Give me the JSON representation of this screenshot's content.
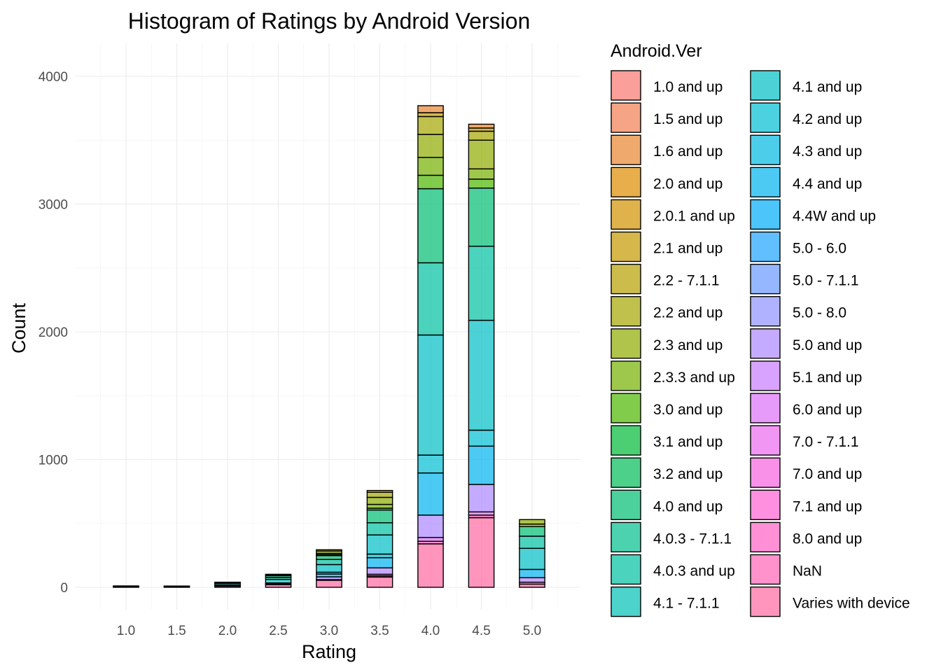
{
  "chart_data": {
    "type": "bar",
    "stacked": true,
    "title": "Histogram of Ratings by Android Version",
    "xlabel": "Rating",
    "ylabel": "Count",
    "x_ticks": [
      "1.0",
      "1.5",
      "2.0",
      "2.5",
      "3.0",
      "3.5",
      "4.0",
      "4.5",
      "5.0"
    ],
    "y_ticks": [
      "0",
      "1000",
      "2000",
      "3000",
      "4000"
    ],
    "xlim": [
      0.75,
      5.25
    ],
    "ylim": [
      0,
      4100
    ],
    "bin_width": 0.25,
    "grid": true,
    "legend": {
      "title": "Android.Ver",
      "position": "right",
      "columns": 2
    },
    "categories": [
      "1.0 and up",
      "1.5 and up",
      "1.6 and up",
      "2.0 and up",
      "2.0.1 and up",
      "2.1 and up",
      "2.2 - 7.1.1",
      "2.2 and up",
      "2.3 and up",
      "2.3.3 and up",
      "3.0 and up",
      "3.1 and up",
      "3.2 and up",
      "4.0 and up",
      "4.0.3 - 7.1.1",
      "4.0.3 and up",
      "4.1 - 7.1.1",
      "4.1 and up",
      "4.2 and up",
      "4.3 and up",
      "4.4 and up",
      "4.4W and up",
      "5.0 - 6.0",
      "5.0 - 7.1.1",
      "5.0 - 8.0",
      "5.0 and up",
      "5.1 and up",
      "6.0 and up",
      "7.0 - 7.1.1",
      "7.0 and up",
      "7.1 and up",
      "8.0 and up",
      "NaN",
      "Varies with device"
    ],
    "colors": [
      "#F8766D",
      "#F17D51",
      "#E8842F",
      "#DE8C00",
      "#D39200",
      "#C59900",
      "#B6A000",
      "#A4A600",
      "#8FAB00",
      "#74B000",
      "#4DB600",
      "#00BA38",
      "#00BC59",
      "#00BE74",
      "#00BF8B",
      "#00C0A1",
      "#00C0B5",
      "#00BFC4",
      "#00BDD3",
      "#00B9E3",
      "#00B4F0",
      "#00ADFA",
      "#1EA4FF",
      "#6699FF",
      "#8F91FF",
      "#AC88FF",
      "#C77CFF",
      "#DC71FA",
      "#EC69EF",
      "#F763E0",
      "#FD61D1",
      "#FF61C3",
      "#FF63B5",
      "#FF68A1"
    ],
    "bins": [
      {
        "x": 1.0,
        "segments": {
          "4.1 and up": 8,
          "Varies with device": 3
        }
      },
      {
        "x": 1.5,
        "segments": {
          "4.1 and up": 7,
          "Varies with device": 3
        }
      },
      {
        "x": 2.0,
        "segments": {
          "2.3 and up": 3,
          "4.0.3 and up": 8,
          "4.1 and up": 12,
          "4.4 and up": 4,
          "5.0 and up": 4,
          "Varies with device": 9
        }
      },
      {
        "x": 2.5,
        "segments": {
          "2.3 and up": 8,
          "3.0 and up": 3,
          "4.0 and up": 14,
          "4.0.3 and up": 15,
          "4.1 and up": 28,
          "4.4 and up": 8,
          "5.0 and up": 6,
          "Varies with device": 20
        }
      },
      {
        "x": 3.0,
        "segments": {
          "2.2 and up": 10,
          "2.3 and up": 18,
          "2.3.3 and up": 10,
          "3.0 and up": 8,
          "4.0 and up": 30,
          "4.0.3 and up": 40,
          "4.1 and up": 60,
          "4.2 and up": 14,
          "4.4 and up": 22,
          "5.0 and up": 22,
          "6.0 and up": 5,
          "Varies with device": 55
        }
      },
      {
        "x": 3.5,
        "segments": {
          "2.1 and up": 14,
          "2.2 and up": 40,
          "2.3 and up": 55,
          "2.3.3 and up": 30,
          "3.0 and up": 14,
          "4.0 and up": 100,
          "4.0.3 and up": 95,
          "4.1 and up": 150,
          "4.2 and up": 28,
          "4.4 and up": 80,
          "5.0 and up": 50,
          "6.0 and up": 12,
          "NaN": 10,
          "Varies with device": 80
        }
      },
      {
        "x": 4.0,
        "segments": {
          "1.6 and up": 55,
          "2.1 and up": 30,
          "2.2 and up": 140,
          "2.3 and up": 180,
          "2.3.3 and up": 140,
          "3.0 and up": 105,
          "4.0 and up": 580,
          "4.0.3 and up": 565,
          "4.1 and up": 940,
          "4.2 and up": 140,
          "4.4 and up": 330,
          "5.0 and up": 175,
          "6.0 and up": 30,
          "NaN": 20,
          "Varies with device": 340
        }
      },
      {
        "x": 4.5,
        "segments": {
          "1.6 and up": 30,
          "2.1 and up": 25,
          "2.2 and up": 70,
          "2.3 and up": 225,
          "2.3.3 and up": 80,
          "3.0 and up": 70,
          "4.0 and up": 455,
          "4.0.3 and up": 580,
          "4.1 and up": 860,
          "4.2 and up": 125,
          "4.4 and up": 300,
          "5.0 and up": 215,
          "6.0 and up": 25,
          "NaN": 20,
          "Varies with device": 545
        }
      },
      {
        "x": 5.0,
        "segments": {
          "2.3 and up": 35,
          "2.3.3 and up": 20,
          "4.0 and up": 75,
          "4.0.3 and up": 95,
          "4.1 and up": 165,
          "4.4 and up": 65,
          "5.0 and up": 35,
          "6.0 and up": 15,
          "Varies with device": 25
        }
      }
    ]
  }
}
